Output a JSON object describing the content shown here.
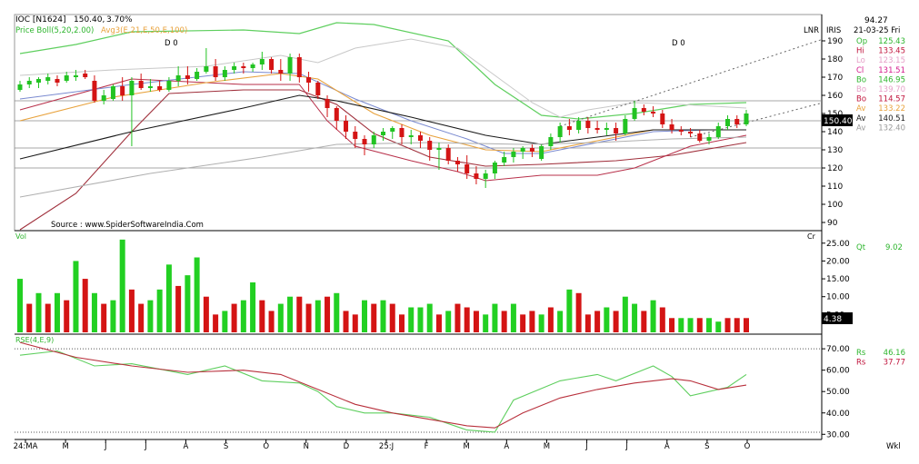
{
  "header": {
    "symbol": "IOC [N1624]",
    "price": "150.40,",
    "change": "3.70%",
    "bollinger_label": "Price Boll(5,20,2.00)",
    "avg_label": "Avg3(E,21,E,50,E,100)",
    "d_marker_left": "D 0",
    "d_marker_right": "D 0",
    "lnr_label": "LNR",
    "iris_label": "IRIS",
    "source": "Source : www.SpiderSoftwareIndia.Com"
  },
  "info_panel": {
    "top_value": "94.27",
    "date": "21-03-25 Fri",
    "rows": [
      {
        "label": "Op",
        "value": "125.43",
        "color": "#2db52d"
      },
      {
        "label": "Hi",
        "value": "133.45",
        "color": "#c0143c"
      },
      {
        "label": "Lo",
        "value": "123.15",
        "color": "#e6a0c8"
      },
      {
        "label": "Cl",
        "value": "131.51",
        "color": "#d41a8c"
      },
      {
        "label": "Bo",
        "value": "146.95",
        "color": "#2db52d"
      },
      {
        "label": "Bo",
        "value": "139.70",
        "color": "#e6a0c8"
      },
      {
        "label": "Bo",
        "value": "114.57",
        "color": "#c0143c"
      },
      {
        "label": "Av",
        "value": "133.22",
        "color": "#e8a23c"
      },
      {
        "label": "Av",
        "value": "140.51",
        "color": "#1a1a1a"
      },
      {
        "label": "Av",
        "value": "132.40",
        "color": "#9a9a9a"
      }
    ],
    "last_price_tag": "150.40",
    "vol_qt_label": "Qt",
    "vol_qt_value": "9.02",
    "vol_tag": "4.38",
    "vol_cr_label": "Cr",
    "rs_rows": [
      {
        "label": "Rs",
        "value": "46.16",
        "color": "#2db52d"
      },
      {
        "label": "Rs",
        "value": "37.77",
        "color": "#c0143c"
      }
    ],
    "wkl_label": "Wkl"
  },
  "chart_data": {
    "type": "candlestick",
    "price_axis": {
      "ylim": [
        86,
        204
      ],
      "ticks": [
        90,
        100,
        110,
        120,
        130,
        140,
        150,
        160,
        170,
        180,
        190
      ]
    },
    "price_hlines": [
      157,
      146,
      131,
      120
    ],
    "x_labels": [
      "24:MA",
      "M",
      "J",
      "J",
      "A",
      "S",
      "O",
      "N",
      "D",
      "25:J",
      "F",
      "M",
      "A",
      "M",
      "J",
      "J",
      "A",
      "S",
      "O"
    ],
    "candles": [
      [
        163,
        168,
        162,
        166
      ],
      [
        166,
        170,
        164,
        168
      ],
      [
        167,
        170,
        164,
        169
      ],
      [
        168,
        172,
        166,
        170
      ],
      [
        169,
        171,
        165,
        167
      ],
      [
        168,
        173,
        167,
        171
      ],
      [
        170,
        174,
        168,
        171
      ],
      [
        172,
        174,
        169,
        170
      ],
      [
        168,
        171,
        156,
        157
      ],
      [
        157,
        163,
        155,
        160
      ],
      [
        158,
        166,
        157,
        165
      ],
      [
        165,
        170,
        157,
        160
      ],
      [
        160,
        170,
        132,
        168
      ],
      [
        168,
        172,
        163,
        164
      ],
      [
        164,
        169,
        162,
        165
      ],
      [
        165,
        168,
        162,
        163
      ],
      [
        163,
        170,
        162,
        168
      ],
      [
        168,
        176,
        165,
        171
      ],
      [
        171,
        176,
        166,
        169
      ],
      [
        169,
        175,
        168,
        173
      ],
      [
        173,
        186,
        172,
        176
      ],
      [
        176,
        180,
        168,
        170
      ],
      [
        170,
        176,
        168,
        174
      ],
      [
        174,
        178,
        172,
        176
      ],
      [
        176,
        178,
        172,
        175
      ],
      [
        175,
        178,
        173,
        177
      ],
      [
        177,
        184,
        174,
        180
      ],
      [
        180,
        181,
        172,
        174
      ],
      [
        174,
        180,
        168,
        172
      ],
      [
        172,
        183,
        168,
        181
      ],
      [
        181,
        183,
        167,
        170
      ],
      [
        170,
        173,
        162,
        167
      ],
      [
        167,
        168,
        158,
        160
      ],
      [
        158,
        160,
        148,
        153
      ],
      [
        153,
        154,
        141,
        146
      ],
      [
        146,
        149,
        136,
        140
      ],
      [
        140,
        143,
        131,
        136
      ],
      [
        136,
        138,
        127,
        133
      ],
      [
        133,
        140,
        131,
        138
      ],
      [
        138,
        142,
        135,
        140
      ],
      [
        140,
        143,
        136,
        142
      ],
      [
        142,
        144,
        133,
        137
      ],
      [
        137,
        141,
        133,
        138
      ],
      [
        138,
        140,
        131,
        135
      ],
      [
        135,
        137,
        124,
        130
      ],
      [
        130,
        134,
        119,
        131
      ],
      [
        131,
        133,
        122,
        124
      ],
      [
        124,
        126,
        118,
        122
      ],
      [
        122,
        127,
        114,
        117
      ],
      [
        117,
        121,
        111,
        114
      ],
      [
        114,
        119,
        109,
        117
      ],
      [
        117,
        124,
        114,
        123
      ],
      [
        123,
        129,
        121,
        126
      ],
      [
        126,
        131,
        123,
        129
      ],
      [
        129,
        132,
        125,
        131
      ],
      [
        131,
        133,
        126,
        129
      ],
      [
        125,
        133,
        124,
        132
      ],
      [
        132,
        139,
        130,
        137
      ],
      [
        137,
        145,
        134,
        143
      ],
      [
        143,
        147,
        138,
        141
      ],
      [
        141,
        148,
        139,
        146
      ],
      [
        146,
        148,
        139,
        142
      ],
      [
        142,
        146,
        139,
        141
      ],
      [
        141,
        145,
        138,
        142
      ],
      [
        142,
        145,
        135,
        139
      ],
      [
        139,
        149,
        138,
        147
      ],
      [
        147,
        157,
        146,
        153
      ],
      [
        153,
        155,
        149,
        151
      ],
      [
        151,
        154,
        148,
        150
      ],
      [
        150,
        152,
        142,
        144
      ],
      [
        144,
        147,
        139,
        141
      ],
      [
        141,
        143,
        138,
        140
      ],
      [
        140,
        142,
        137,
        139
      ],
      [
        139,
        141,
        134,
        135
      ],
      [
        135,
        139,
        133,
        137
      ],
      [
        137,
        145,
        136,
        143
      ],
      [
        143,
        149,
        141,
        147
      ],
      [
        147,
        149,
        142,
        144
      ],
      [
        144,
        152,
        143,
        150
      ]
    ],
    "indicators": {
      "bollinger_upper": [
        [
          0,
          171
        ],
        [
          10,
          174
        ],
        [
          20,
          176
        ],
        [
          28,
          182
        ],
        [
          32,
          178
        ],
        [
          36,
          186
        ],
        [
          42,
          191
        ],
        [
          47,
          186
        ],
        [
          51,
          171
        ],
        [
          55,
          156
        ],
        [
          58,
          148
        ],
        [
          61,
          152
        ],
        [
          66,
          156
        ],
        [
          71,
          155
        ],
        [
          78,
          153
        ]
      ],
      "bollinger_lower": [
        [
          0,
          152
        ],
        [
          12,
          169
        ],
        [
          24,
          166
        ],
        [
          30,
          166
        ],
        [
          33,
          146
        ],
        [
          36,
          132
        ],
        [
          42,
          124
        ],
        [
          47,
          118
        ],
        [
          50,
          113
        ],
        [
          56,
          116
        ],
        [
          62,
          116
        ],
        [
          66,
          120
        ],
        [
          72,
          132
        ],
        [
          78,
          138
        ]
      ],
      "bollinger_mid": [
        [
          0,
          158
        ],
        [
          12,
          166
        ],
        [
          24,
          173
        ],
        [
          30,
          172
        ],
        [
          36,
          158
        ],
        [
          42,
          146
        ],
        [
          48,
          136
        ],
        [
          52,
          128
        ],
        [
          56,
          128
        ],
        [
          62,
          134
        ],
        [
          68,
          140
        ],
        [
          74,
          141
        ],
        [
          78,
          141
        ]
      ],
      "ema21": [
        [
          0,
          146
        ],
        [
          10,
          159
        ],
        [
          20,
          167
        ],
        [
          28,
          172
        ],
        [
          32,
          169
        ],
        [
          38,
          150
        ],
        [
          44,
          138
        ],
        [
          50,
          130
        ],
        [
          56,
          129
        ],
        [
          62,
          135
        ],
        [
          68,
          141
        ],
        [
          74,
          141
        ],
        [
          78,
          141
        ]
      ],
      "ema50": [
        [
          0,
          125
        ],
        [
          12,
          140
        ],
        [
          24,
          153
        ],
        [
          30,
          160
        ],
        [
          34,
          157
        ],
        [
          42,
          148
        ],
        [
          50,
          138
        ],
        [
          56,
          133
        ],
        [
          62,
          137
        ],
        [
          68,
          141
        ],
        [
          74,
          141
        ],
        [
          78,
          141
        ]
      ],
      "ema100": [
        [
          0,
          104
        ],
        [
          14,
          117
        ],
        [
          26,
          126
        ],
        [
          34,
          133
        ],
        [
          44,
          134
        ],
        [
          54,
          133
        ],
        [
          62,
          134
        ],
        [
          70,
          136
        ],
        [
          78,
          137
        ]
      ],
      "bollinger_wide_upper": [
        [
          0,
          183
        ],
        [
          6,
          188
        ],
        [
          12,
          195
        ],
        [
          24,
          196
        ],
        [
          30,
          194
        ],
        [
          34,
          200
        ],
        [
          38,
          199
        ],
        [
          46,
          190
        ],
        [
          51,
          166
        ],
        [
          56,
          149
        ],
        [
          60,
          147
        ],
        [
          66,
          150
        ],
        [
          72,
          155
        ],
        [
          78,
          156
        ]
      ],
      "bollinger_wide_lower": [
        [
          0,
          86
        ],
        [
          6,
          106
        ],
        [
          12,
          140
        ],
        [
          16,
          161
        ],
        [
          24,
          163
        ],
        [
          30,
          163
        ],
        [
          34,
          155
        ],
        [
          38,
          139
        ],
        [
          44,
          126
        ],
        [
          50,
          121
        ],
        [
          56,
          122
        ],
        [
          64,
          124
        ],
        [
          70,
          127
        ],
        [
          78,
          134
        ]
      ],
      "trend_upper": [
        [
          58,
          143
        ],
        [
          78,
          177
        ]
      ],
      "trend_lower": [
        [
          72,
          137
        ],
        [
          78,
          145
        ]
      ]
    },
    "volume": {
      "ylim": [
        0,
        28
      ],
      "ticks": [
        5,
        10,
        15,
        20,
        25
      ],
      "values": [
        15,
        8,
        11,
        8,
        11,
        9,
        20,
        15,
        11,
        8,
        9,
        26,
        12,
        8,
        9,
        12,
        19,
        13,
        16,
        21,
        10,
        5,
        6,
        8,
        9,
        14,
        9,
        6,
        8,
        10,
        10,
        8,
        9,
        10,
        11,
        6,
        5,
        9,
        8,
        9,
        8,
        5,
        7,
        7,
        8,
        5,
        6,
        8,
        7,
        6,
        5,
        8,
        6,
        8,
        5,
        6,
        5,
        7,
        6,
        12,
        11,
        5,
        6,
        7,
        6,
        10,
        8,
        6,
        9,
        7,
        4,
        4,
        4,
        4,
        4,
        3,
        4,
        4,
        4
      ],
      "colors": [
        "g",
        "r",
        "g",
        "r",
        "g",
        "r",
        "g",
        "r",
        "g",
        "r",
        "g",
        "g",
        "r",
        "r",
        "g",
        "g",
        "g",
        "r",
        "g",
        "g",
        "r",
        "r",
        "g",
        "r",
        "g",
        "g",
        "r",
        "r",
        "g",
        "g",
        "r",
        "r",
        "g",
        "r",
        "g",
        "r",
        "r",
        "g",
        "r",
        "g",
        "r",
        "r",
        "g",
        "g",
        "g",
        "r",
        "g",
        "r",
        "r",
        "r",
        "g",
        "g",
        "r",
        "g",
        "r",
        "r",
        "g",
        "r",
        "g",
        "g",
        "r",
        "r",
        "r",
        "g",
        "r",
        "g",
        "g",
        "r",
        "g",
        "r",
        "r",
        "g",
        "g",
        "r",
        "g",
        "g",
        "r",
        "r",
        "r"
      ]
    },
    "rse": {
      "label": "RSE(4,E,9)",
      "ylim": [
        28,
        76
      ],
      "ticks": [
        30,
        40,
        50,
        60,
        70
      ],
      "dotted_levels": [
        70,
        31
      ],
      "fast": [
        [
          0,
          67
        ],
        [
          4,
          69
        ],
        [
          8,
          62
        ],
        [
          12,
          63
        ],
        [
          18,
          58
        ],
        [
          22,
          62
        ],
        [
          26,
          55
        ],
        [
          30,
          54
        ],
        [
          32,
          50
        ],
        [
          34,
          43
        ],
        [
          37,
          40
        ],
        [
          40,
          40
        ],
        [
          44,
          38
        ],
        [
          48,
          32
        ],
        [
          51,
          31
        ],
        [
          53,
          46
        ],
        [
          58,
          55
        ],
        [
          62,
          58
        ],
        [
          64,
          55
        ],
        [
          68,
          62
        ],
        [
          70,
          57
        ],
        [
          72,
          48
        ],
        [
          74,
          50
        ],
        [
          76,
          52
        ],
        [
          78,
          58
        ]
      ],
      "slow": [
        [
          0,
          73
        ],
        [
          6,
          66
        ],
        [
          12,
          62
        ],
        [
          18,
          59
        ],
        [
          24,
          60
        ],
        [
          28,
          58
        ],
        [
          32,
          51
        ],
        [
          36,
          44
        ],
        [
          40,
          40
        ],
        [
          44,
          37
        ],
        [
          48,
          34
        ],
        [
          51,
          33
        ],
        [
          54,
          40
        ],
        [
          58,
          47
        ],
        [
          62,
          51
        ],
        [
          66,
          54
        ],
        [
          70,
          56
        ],
        [
          72,
          55
        ],
        [
          75,
          51
        ],
        [
          78,
          53
        ]
      ]
    }
  }
}
